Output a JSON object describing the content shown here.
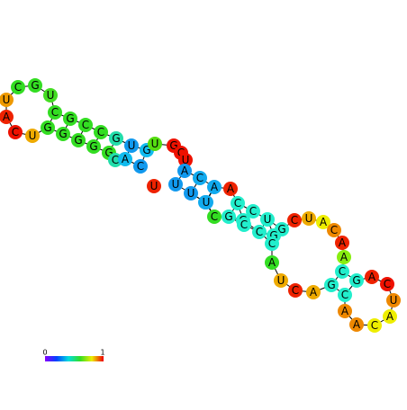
{
  "nodes": [
    {
      "label": "C",
      "color": "#33dd22"
    },
    {
      "label": "G",
      "color": "#33dd22"
    },
    {
      "label": "U",
      "color": "#44dd22"
    },
    {
      "label": "U",
      "color": "#ee9900"
    },
    {
      "label": "A",
      "color": "#ee2200"
    },
    {
      "label": "C",
      "color": "#ee1100"
    },
    {
      "label": "U",
      "color": "#eeaa00"
    },
    {
      "label": "G",
      "color": "#33dd22"
    },
    {
      "label": "C",
      "color": "#33dd22"
    },
    {
      "label": "G",
      "color": "#33dd22"
    },
    {
      "label": "C",
      "color": "#33dd22"
    },
    {
      "label": "C",
      "color": "#33dd22"
    },
    {
      "label": "G",
      "color": "#22ddaa"
    },
    {
      "label": "U",
      "color": "#1199ee"
    },
    {
      "label": "G",
      "color": "#11bbee"
    },
    {
      "label": "U",
      "color": "#55dd11"
    },
    {
      "label": "G",
      "color": "#33dd22"
    },
    {
      "label": "G",
      "color": "#33dd22"
    },
    {
      "label": "G",
      "color": "#33dd22"
    },
    {
      "label": "G",
      "color": "#33dd22"
    },
    {
      "label": "C",
      "color": "#22ddaa"
    },
    {
      "label": "A",
      "color": "#11bbee"
    },
    {
      "label": "C",
      "color": "#1199ee"
    },
    {
      "label": "U",
      "color": "#ee2200"
    },
    {
      "label": "G",
      "color": "#ee1100"
    },
    {
      "label": "C",
      "color": "#ee1100"
    },
    {
      "label": "U",
      "color": "#ee1100"
    },
    {
      "label": "A",
      "color": "#1199ee"
    },
    {
      "label": "C",
      "color": "#11aaee"
    },
    {
      "label": "A",
      "color": "#11aaee"
    },
    {
      "label": "A",
      "color": "#ee2200"
    },
    {
      "label": "U",
      "color": "#1199ee"
    },
    {
      "label": "U",
      "color": "#1199ee"
    },
    {
      "label": "G",
      "color": "#11aaee"
    },
    {
      "label": "U",
      "color": "#11aaee"
    },
    {
      "label": "C",
      "color": "#33dd22"
    },
    {
      "label": "G",
      "color": "#22eecc"
    },
    {
      "label": "G",
      "color": "#22eecc"
    },
    {
      "label": "C",
      "color": "#22eecc"
    },
    {
      "label": "C",
      "color": "#22eecc"
    },
    {
      "label": "U",
      "color": "#22eecc"
    },
    {
      "label": "G",
      "color": "#22eecc"
    },
    {
      "label": "C",
      "color": "#22eecc"
    },
    {
      "label": "C",
      "color": "#22eecc"
    },
    {
      "label": "G",
      "color": "#22eecc"
    },
    {
      "label": "C",
      "color": "#22eecc"
    },
    {
      "label": "C",
      "color": "#ee2200"
    },
    {
      "label": "U",
      "color": "#eeaa00"
    },
    {
      "label": "A",
      "color": "#eeee00"
    },
    {
      "label": "C",
      "color": "#ee8800"
    },
    {
      "label": "A",
      "color": "#ee2200"
    },
    {
      "label": "A",
      "color": "#88ee11"
    },
    {
      "label": "C",
      "color": "#22eecc"
    },
    {
      "label": "G",
      "color": "#22eecc"
    },
    {
      "label": "A",
      "color": "#ee2200"
    },
    {
      "label": "C",
      "color": "#ee1100"
    },
    {
      "label": "U",
      "color": "#ee8800"
    },
    {
      "label": "A",
      "color": "#eeee00"
    },
    {
      "label": "C",
      "color": "#eeee00"
    },
    {
      "label": "A",
      "color": "#ee8800"
    },
    {
      "label": "A",
      "color": "#ee8800"
    },
    {
      "label": "C",
      "color": "#22eecc"
    },
    {
      "label": "G",
      "color": "#22eecc"
    },
    {
      "label": "A",
      "color": "#eeaa00"
    },
    {
      "label": "C",
      "color": "#ee2200"
    },
    {
      "label": "U",
      "color": "#eeaa00"
    },
    {
      "label": "A",
      "color": "#33dd22"
    }
  ],
  "colorbar": {
    "min_label": "0",
    "max_label": "1"
  }
}
